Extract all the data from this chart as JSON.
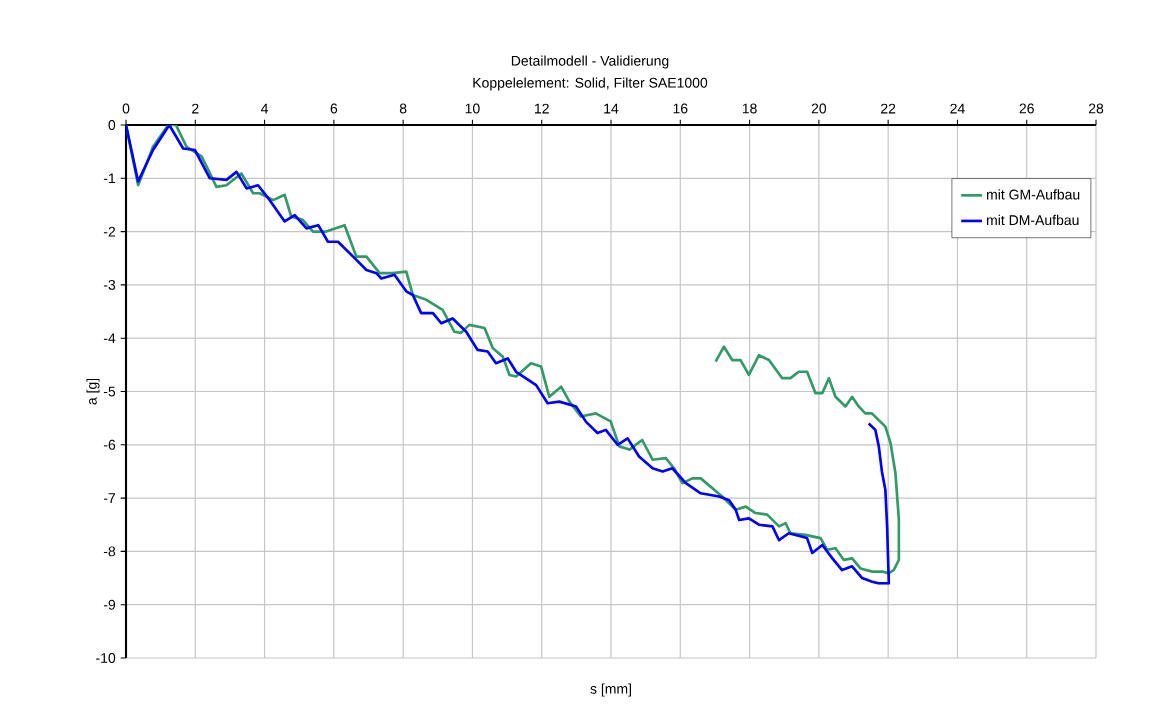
{
  "chart_data": {
    "type": "line",
    "title": "Detailmodell - Validierung",
    "subtitle": "Koppelelement: Solid, Filter SAE1000",
    "xlabel": "s [mm]",
    "ylabel": "a [g]",
    "xlim": [
      0,
      28
    ],
    "ylim": [
      -10,
      0
    ],
    "xticks": [
      0,
      2,
      4,
      6,
      8,
      10,
      12,
      14,
      16,
      18,
      20,
      22,
      24,
      26,
      28
    ],
    "yticks": [
      -10,
      -9,
      -8,
      -7,
      -6,
      -5,
      -4,
      -3,
      -2,
      -1,
      0
    ],
    "grid": true,
    "legend": "top right",
    "marker": "none",
    "line_style": "solid",
    "series": [
      {
        "name": "mit GM-Aufbau",
        "color": "#339966",
        "x": [
          0,
          0.35,
          0.78,
          1.22,
          1.44,
          1.75,
          2.18,
          2.42,
          2.61,
          2.9,
          3.33,
          3.67,
          3.86,
          4.25,
          4.58,
          4.77,
          5.1,
          5.4,
          5.78,
          6.31,
          6.65,
          6.94,
          7.32,
          7.7,
          8.09,
          8.28,
          8.67,
          9.14,
          9.48,
          9.67,
          9.91,
          10.35,
          10.59,
          10.88,
          11.07,
          11.26,
          11.69,
          11.98,
          12.22,
          12.56,
          12.8,
          13.13,
          13.56,
          13.99,
          14.24,
          14.53,
          14.9,
          15.2,
          15.58,
          15.82,
          16.06,
          16.35,
          16.59,
          17.21,
          17.6,
          17.89,
          18.17,
          18.51,
          18.85,
          19.04,
          19.18,
          19.61,
          20.05,
          20.24,
          20.48,
          20.72,
          20.96,
          21.2,
          21.54,
          21.83,
          22.02,
          22.16,
          22.31,
          22.31,
          22.21,
          22.07,
          21.92,
          21.53,
          21.34,
          21.15,
          20.96,
          20.77,
          20.48,
          20.29,
          20.1,
          19.9,
          19.66,
          19.42,
          19.18,
          18.94,
          18.56,
          18.27,
          17.98,
          17.74,
          17.5,
          17.26,
          17.02
        ],
        "values": [
          0,
          -1.13,
          -0.41,
          0,
          0,
          -0.41,
          -0.59,
          -0.9,
          -1.16,
          -1.13,
          -0.91,
          -1.28,
          -1.28,
          -1.41,
          -1.31,
          -1.72,
          -1.78,
          -2.0,
          -2.0,
          -1.88,
          -2.47,
          -2.47,
          -2.78,
          -2.78,
          -2.75,
          -3.19,
          -3.28,
          -3.47,
          -3.88,
          -3.9,
          -3.75,
          -3.81,
          -4.19,
          -4.35,
          -4.69,
          -4.72,
          -4.47,
          -4.53,
          -5.1,
          -4.91,
          -5.19,
          -5.47,
          -5.41,
          -5.56,
          -6.03,
          -6.09,
          -5.91,
          -6.28,
          -6.25,
          -6.44,
          -6.72,
          -6.63,
          -6.63,
          -6.97,
          -7.22,
          -7.16,
          -7.28,
          -7.31,
          -7.53,
          -7.47,
          -7.66,
          -7.69,
          -7.75,
          -7.97,
          -7.94,
          -8.16,
          -8.13,
          -8.32,
          -8.38,
          -8.38,
          -8.41,
          -8.35,
          -8.16,
          -7.41,
          -6.53,
          -5.97,
          -5.66,
          -5.41,
          -5.41,
          -5.28,
          -5.1,
          -5.28,
          -5.1,
          -4.75,
          -5.03,
          -5.03,
          -4.63,
          -4.63,
          -4.75,
          -4.75,
          -4.41,
          -4.32,
          -4.69,
          -4.41,
          -4.41,
          -4.16,
          -4.44
        ]
      },
      {
        "name": "mit DM-Aufbau",
        "color": "#0000ff",
        "x": [
          0,
          0.35,
          0.78,
          1.25,
          1.65,
          1.99,
          2.42,
          2.9,
          3.19,
          3.48,
          3.81,
          4.15,
          4.58,
          4.87,
          5.21,
          5.55,
          5.83,
          6.12,
          6.65,
          6.94,
          7.23,
          7.37,
          7.75,
          8.09,
          8.28,
          8.52,
          8.86,
          9.1,
          9.43,
          9.82,
          10.15,
          10.44,
          10.68,
          11.02,
          11.26,
          11.84,
          12.17,
          12.51,
          12.99,
          13.28,
          13.61,
          13.85,
          14.19,
          14.48,
          14.81,
          15.2,
          15.49,
          15.77,
          16.16,
          16.59,
          17.12,
          17.41,
          17.6,
          17.7,
          17.98,
          18.27,
          18.66,
          18.85,
          19.13,
          19.66,
          19.81,
          20.1,
          20.39,
          20.67,
          20.96,
          21.25,
          21.54,
          21.73,
          22.02,
          21.97,
          21.92,
          21.82,
          21.73,
          21.63,
          21.44
        ],
        "values": [
          0,
          -1.06,
          -0.47,
          0,
          -0.44,
          -0.47,
          -1.0,
          -1.03,
          -0.88,
          -1.19,
          -1.13,
          -1.41,
          -1.81,
          -1.69,
          -1.94,
          -1.88,
          -2.19,
          -2.19,
          -2.53,
          -2.72,
          -2.78,
          -2.88,
          -2.81,
          -3.12,
          -3.19,
          -3.53,
          -3.53,
          -3.72,
          -3.63,
          -3.88,
          -4.22,
          -4.25,
          -4.47,
          -4.38,
          -4.63,
          -4.88,
          -5.22,
          -5.19,
          -5.28,
          -5.57,
          -5.78,
          -5.72,
          -6.0,
          -5.88,
          -6.22,
          -6.44,
          -6.5,
          -6.44,
          -6.72,
          -6.91,
          -6.97,
          -7.04,
          -7.22,
          -7.41,
          -7.38,
          -7.5,
          -7.53,
          -7.79,
          -7.66,
          -7.75,
          -8.03,
          -7.88,
          -8.13,
          -8.35,
          -8.28,
          -8.5,
          -8.57,
          -8.6,
          -8.6,
          -7.53,
          -6.85,
          -6.5,
          -6.03,
          -5.72,
          -5.6
        ]
      }
    ]
  }
}
